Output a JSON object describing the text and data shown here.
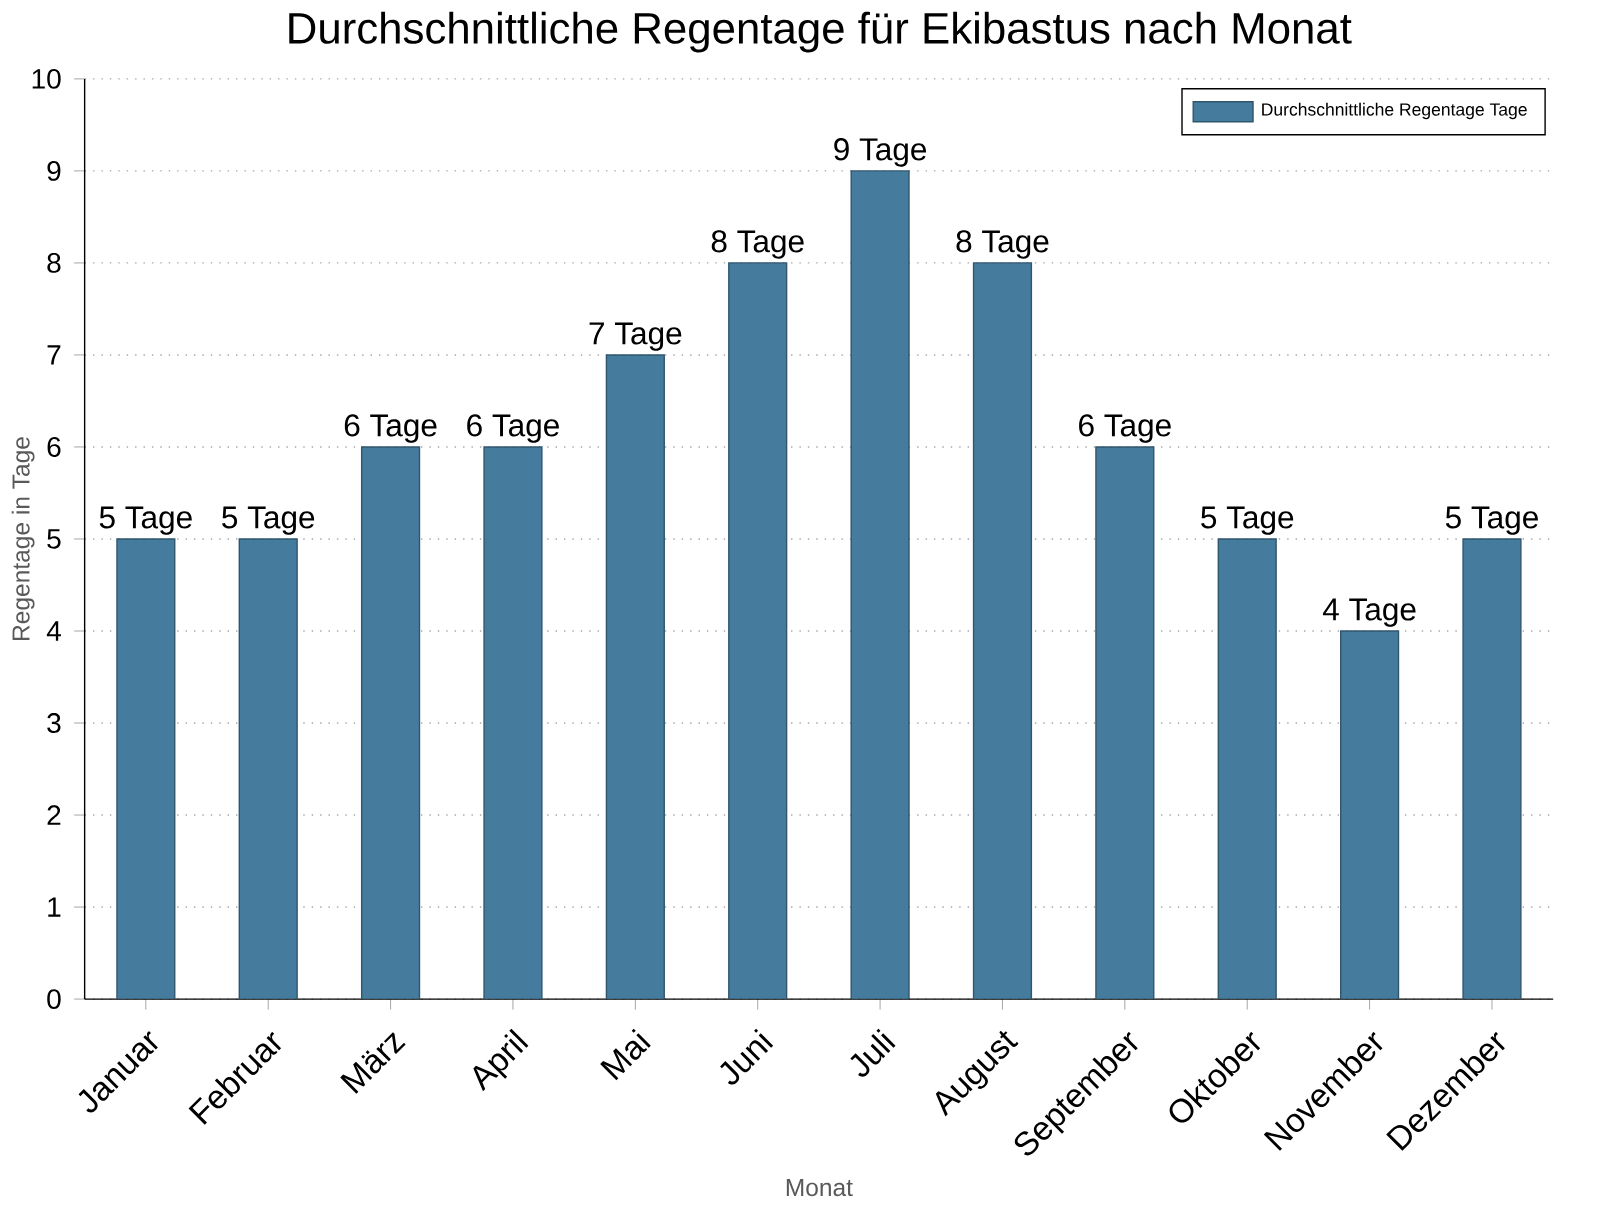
{
  "chart_data": {
    "type": "bar",
    "title": "Durchschnittliche Regentage für Ekibastus nach Monat",
    "xlabel": "Monat",
    "ylabel": "Regentage in Tage",
    "categories": [
      "Januar",
      "Februar",
      "März",
      "April",
      "Mai",
      "Juni",
      "Juli",
      "August",
      "September",
      "Oktober",
      "November",
      "Dezember"
    ],
    "series": [
      {
        "name": "Durchschnittliche Regentage Tage",
        "color": "#457b9d",
        "values": [
          5,
          5,
          6,
          6,
          7,
          8,
          9,
          8,
          6,
          5,
          4,
          5
        ],
        "value_labels": [
          "5 Tage",
          "5 Tage",
          "6 Tage",
          "6 Tage",
          "7 Tage",
          "8 Tage",
          "9 Tage",
          "8 Tage",
          "6 Tage",
          "5 Tage",
          "4 Tage",
          "5 Tage"
        ]
      }
    ],
    "ylim": [
      0,
      10
    ],
    "yticks": [
      0,
      1,
      2,
      3,
      4,
      5,
      6,
      7,
      8,
      9,
      10
    ],
    "grid": "y",
    "legend": "top right"
  }
}
